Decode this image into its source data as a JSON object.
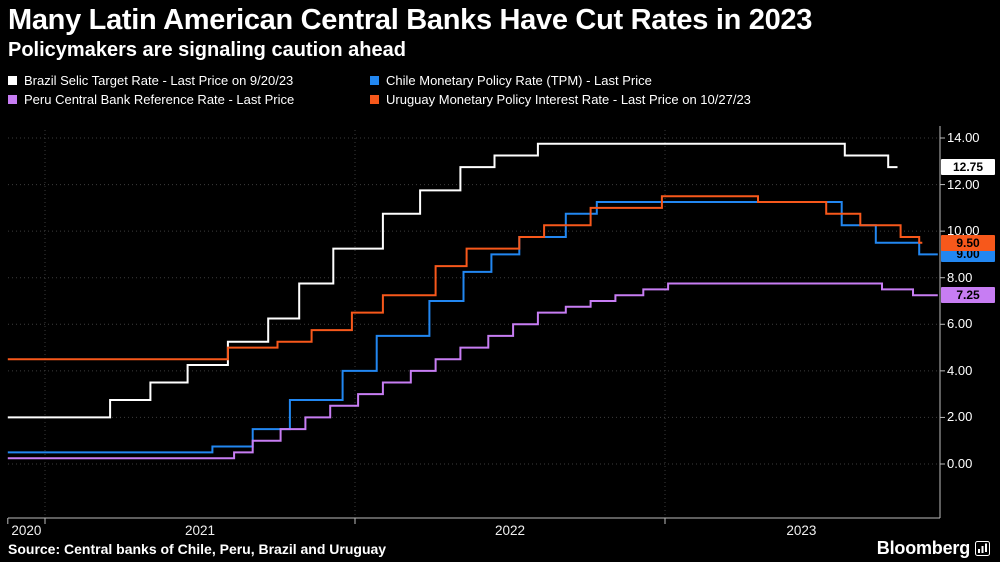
{
  "chart_data": {
    "type": "line",
    "step": true,
    "title": "Many Latin American Central Banks Have Cut Rates in 2023",
    "subtitle": "Policymakers are signaling caution ahead",
    "grid": "dotted",
    "legend_position": "top",
    "x_axis": {
      "start": 2020.88,
      "end": 2023.89,
      "gridline_years": [
        2021,
        2022,
        2023
      ],
      "labels": [
        {
          "label": "2020",
          "center": 2020.94
        },
        {
          "label": "2021",
          "center": 2021.5
        },
        {
          "label": "2022",
          "center": 2022.5
        },
        {
          "label": "2023",
          "center": 2023.44
        }
      ]
    },
    "y_axis": {
      "min": 0,
      "max": 14,
      "ticks": [
        {
          "value": 0,
          "label": "0.00"
        },
        {
          "value": 2,
          "label": "2.00"
        },
        {
          "value": 4,
          "label": "4.00"
        },
        {
          "value": 6,
          "label": "6.00"
        },
        {
          "value": 8,
          "label": "8.00"
        },
        {
          "value": 10,
          "label": "10.00"
        },
        {
          "value": 12,
          "label": "12.00"
        },
        {
          "value": 14,
          "label": "14.00"
        }
      ]
    },
    "series": [
      {
        "id": "brazil",
        "name": "Brazil Selic Target Rate",
        "color": "#ffffff",
        "last_price": "12.75",
        "points": [
          [
            2020.88,
            2.0
          ],
          [
            2021.21,
            2.75
          ],
          [
            2021.34,
            3.5
          ],
          [
            2021.46,
            4.25
          ],
          [
            2021.59,
            5.25
          ],
          [
            2021.72,
            6.25
          ],
          [
            2021.82,
            7.75
          ],
          [
            2021.93,
            9.25
          ],
          [
            2022.09,
            10.75
          ],
          [
            2022.21,
            11.75
          ],
          [
            2022.34,
            12.75
          ],
          [
            2022.45,
            13.25
          ],
          [
            2022.59,
            13.75
          ],
          [
            2023.58,
            13.25
          ],
          [
            2023.72,
            12.75
          ],
          [
            2023.75,
            12.75
          ]
        ]
      },
      {
        "id": "chile",
        "name": "Chile Monetary Policy Rate (TPM)",
        "color": "#2287f1",
        "last_price": "9.00",
        "points": [
          [
            2020.88,
            0.5
          ],
          [
            2021.54,
            0.75
          ],
          [
            2021.67,
            1.5
          ],
          [
            2021.79,
            2.75
          ],
          [
            2021.96,
            4.0
          ],
          [
            2022.07,
            5.5
          ],
          [
            2022.24,
            7.0
          ],
          [
            2022.35,
            8.25
          ],
          [
            2022.44,
            9.0
          ],
          [
            2022.53,
            9.75
          ],
          [
            2022.68,
            10.75
          ],
          [
            2022.78,
            11.25
          ],
          [
            2023.57,
            10.25
          ],
          [
            2023.68,
            9.5
          ],
          [
            2023.82,
            9.0
          ],
          [
            2023.88,
            9.0
          ]
        ]
      },
      {
        "id": "peru",
        "name": "Peru Central Bank Reference Rate",
        "color": "#c77df3",
        "last_price": "7.25",
        "points": [
          [
            2020.88,
            0.25
          ],
          [
            2021.61,
            0.5
          ],
          [
            2021.67,
            1.0
          ],
          [
            2021.76,
            1.5
          ],
          [
            2021.84,
            2.0
          ],
          [
            2021.92,
            2.5
          ],
          [
            2022.01,
            3.0
          ],
          [
            2022.09,
            3.5
          ],
          [
            2022.18,
            4.0
          ],
          [
            2022.26,
            4.5
          ],
          [
            2022.34,
            5.0
          ],
          [
            2022.43,
            5.5
          ],
          [
            2022.51,
            6.0
          ],
          [
            2022.59,
            6.5
          ],
          [
            2022.68,
            6.75
          ],
          [
            2022.76,
            7.0
          ],
          [
            2022.84,
            7.25
          ],
          [
            2022.93,
            7.5
          ],
          [
            2023.01,
            7.75
          ],
          [
            2023.7,
            7.5
          ],
          [
            2023.8,
            7.25
          ],
          [
            2023.88,
            7.25
          ]
        ]
      },
      {
        "id": "uruguay",
        "name": "Uruguay Monetary Policy Interest Rate",
        "color": "#f7581b",
        "last_price": "9.50",
        "points": [
          [
            2020.88,
            4.5
          ],
          [
            2021.59,
            5.0
          ],
          [
            2021.75,
            5.25
          ],
          [
            2021.86,
            5.75
          ],
          [
            2021.99,
            6.5
          ],
          [
            2022.09,
            7.25
          ],
          [
            2022.26,
            8.5
          ],
          [
            2022.36,
            9.25
          ],
          [
            2022.53,
            9.75
          ],
          [
            2022.61,
            10.25
          ],
          [
            2022.76,
            11.0
          ],
          [
            2022.99,
            11.5
          ],
          [
            2023.3,
            11.25
          ],
          [
            2023.52,
            10.75
          ],
          [
            2023.63,
            10.25
          ],
          [
            2023.76,
            9.75
          ],
          [
            2023.82,
            9.5
          ],
          [
            2023.83,
            9.5
          ]
        ]
      }
    ]
  },
  "legend": {
    "items": [
      {
        "id": "brazil",
        "label": "Brazil Selic Target Rate - Last Price on 9/20/23",
        "color": "#ffffff"
      },
      {
        "id": "chile",
        "label": "Chile Monetary Policy Rate (TPM) - Last Price",
        "color": "#2287f1"
      },
      {
        "id": "peru",
        "label": "Peru Central Bank Reference Rate - Last Price",
        "color": "#c77df3"
      },
      {
        "id": "uruguay",
        "label": "Uruguay Monetary Policy Interest Rate - Last Price on 10/27/23",
        "color": "#f7581b"
      }
    ]
  },
  "footer": {
    "source": "Source: Central banks of Chile, Peru, Brazil and Uruguay",
    "brand": "Bloomberg"
  }
}
